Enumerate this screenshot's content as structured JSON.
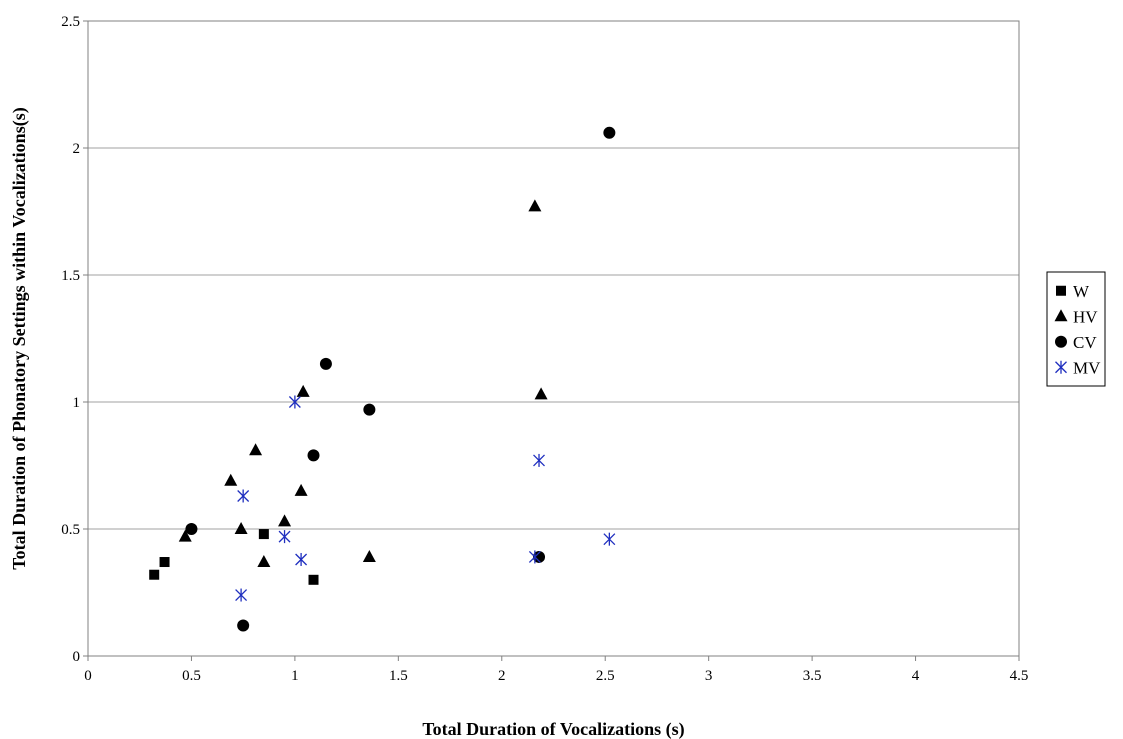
{
  "chart_data": {
    "type": "scatter",
    "title": "",
    "xlabel": "Total Duration of Vocalizations (s)",
    "ylabel": "Total Duration of Phonatory Settings within Vocalizations(s)",
    "xlim": [
      0,
      4.5
    ],
    "ylim": [
      0,
      2.5
    ],
    "x_ticks": [
      "0",
      "0.5",
      "1",
      "1.5",
      "2",
      "2.5",
      "3",
      "3.5",
      "4",
      "4.5"
    ],
    "y_ticks": [
      "0",
      "0.5",
      "1",
      "1.5",
      "2",
      "2.5"
    ],
    "grid": "horizontal",
    "legend_position": "right",
    "series": [
      {
        "name": "W",
        "marker": "square",
        "color": "#000000",
        "points": [
          [
            0.32,
            0.32
          ],
          [
            0.37,
            0.37
          ],
          [
            0.85,
            0.48
          ],
          [
            1.09,
            0.3
          ]
        ]
      },
      {
        "name": "HV",
        "marker": "triangle",
        "color": "#000000",
        "points": [
          [
            0.47,
            0.47
          ],
          [
            0.69,
            0.69
          ],
          [
            0.74,
            0.5
          ],
          [
            0.81,
            0.81
          ],
          [
            0.85,
            0.37
          ],
          [
            0.95,
            0.53
          ],
          [
            1.03,
            0.65
          ],
          [
            1.04,
            1.04
          ],
          [
            1.36,
            0.39
          ],
          [
            2.16,
            1.77
          ],
          [
            2.19,
            1.03
          ]
        ]
      },
      {
        "name": "CV",
        "marker": "circle",
        "color": "#000000",
        "points": [
          [
            0.5,
            0.5
          ],
          [
            0.75,
            0.12
          ],
          [
            1.09,
            0.79
          ],
          [
            1.15,
            1.15
          ],
          [
            1.36,
            0.97
          ],
          [
            2.18,
            0.39
          ],
          [
            2.52,
            2.06
          ]
        ]
      },
      {
        "name": "MV",
        "marker": "asterisk",
        "color": "#1f2fbf",
        "points": [
          [
            0.74,
            0.24
          ],
          [
            0.75,
            0.63
          ],
          [
            0.95,
            0.47
          ],
          [
            1.0,
            1.0
          ],
          [
            1.03,
            0.38
          ],
          [
            2.16,
            0.39
          ],
          [
            2.18,
            0.77
          ],
          [
            2.52,
            0.46
          ]
        ]
      }
    ]
  }
}
